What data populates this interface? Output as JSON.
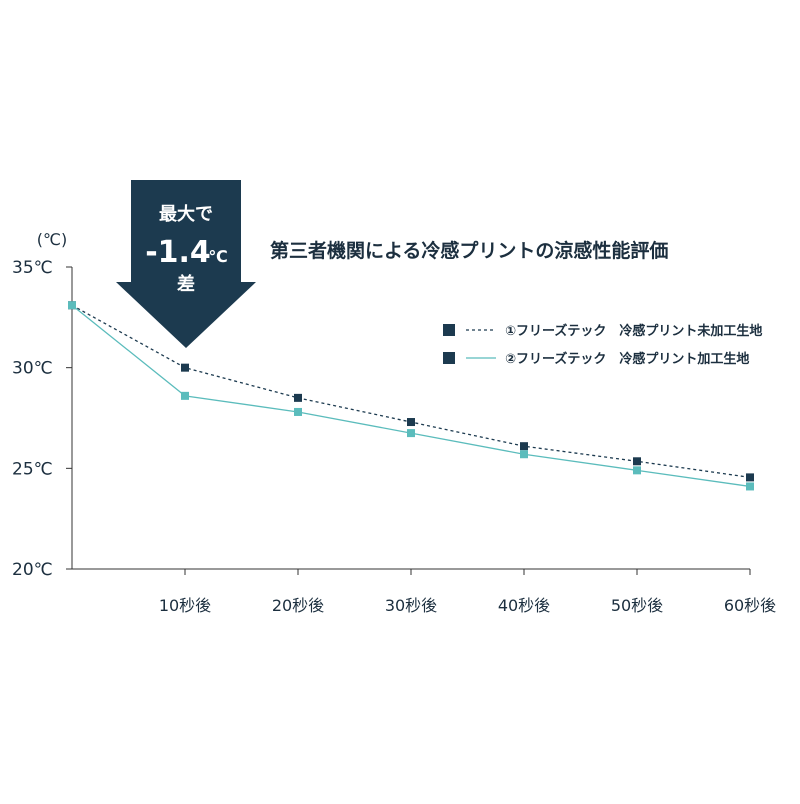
{
  "chart_data": {
    "type": "line",
    "title": "第三者機関による冷感プリントの涼感性能評価",
    "y_unit": "(℃)",
    "annotation": {
      "top": "最大で",
      "value": "-1.4",
      "unit": "℃",
      "bottom": "差"
    },
    "x": [
      0,
      10,
      20,
      30,
      40,
      50,
      60
    ],
    "xlim": [
      0,
      60
    ],
    "xticks": [
      {
        "value": 10,
        "label": "10秒後"
      },
      {
        "value": 20,
        "label": "20秒後"
      },
      {
        "value": 30,
        "label": "30秒後"
      },
      {
        "value": 40,
        "label": "40秒後"
      },
      {
        "value": 50,
        "label": "50秒後"
      },
      {
        "value": 60,
        "label": "60秒後"
      }
    ],
    "ylim": [
      20,
      35
    ],
    "yticks": [
      {
        "value": 20,
        "label": "20℃"
      },
      {
        "value": 25,
        "label": "25℃"
      },
      {
        "value": 30,
        "label": "30℃"
      },
      {
        "value": 35,
        "label": "35℃"
      }
    ],
    "series": [
      {
        "name": "①フリーズテック　冷感プリント未加工生地",
        "color": "#1c3a4f",
        "dash": true,
        "values": [
          33.1,
          30.0,
          28.5,
          27.3,
          26.1,
          25.35,
          24.55
        ]
      },
      {
        "name": "②フリーズテック　冷感プリント加工生地",
        "color": "#5bbcbc",
        "dash": false,
        "values": [
          33.1,
          28.6,
          27.8,
          26.75,
          25.7,
          24.9,
          24.1
        ]
      }
    ]
  }
}
